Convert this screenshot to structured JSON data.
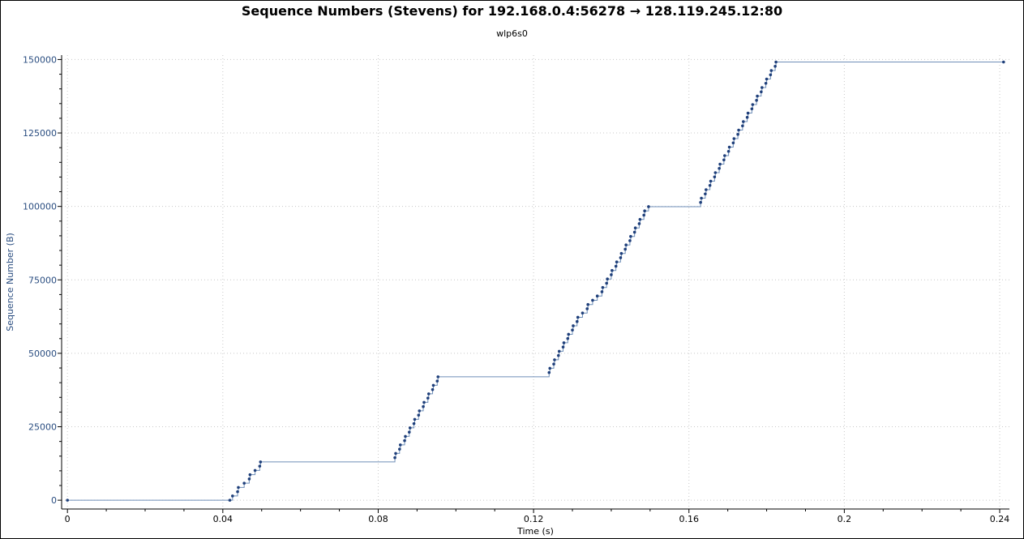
{
  "chart_data": {
    "type": "line",
    "title": "Sequence Numbers (Stevens) for 192.168.0.4:56278 → 128.119.245.12:80",
    "subtitle": "wlp6s0",
    "xlabel": "Time (s)",
    "ylabel": "Sequence Number (B)",
    "xlim": [
      -0.0015,
      0.2425
    ],
    "ylim": [
      -3000,
      151500
    ],
    "xticks": [
      "0",
      "0.04",
      "0.08",
      "0.12",
      "0.16",
      "0.2",
      "0.24"
    ],
    "yticks": [
      "0",
      "25000",
      "50000",
      "75000",
      "100000",
      "125000",
      "150000"
    ],
    "grid": true,
    "legend": "none",
    "colors": {
      "series": "#1f3f7a",
      "step_line": "#6f8fb8",
      "grid": "#c8c8c8",
      "axis_text": "#2a4d80"
    },
    "series": [
      {
        "values": [
          [
            0.0,
            0
          ],
          [
            0.0418,
            0
          ],
          [
            0.0425,
            1448
          ],
          [
            0.0438,
            2896
          ],
          [
            0.044,
            4344
          ],
          [
            0.0455,
            5792
          ],
          [
            0.0468,
            7240
          ],
          [
            0.047,
            8688
          ],
          [
            0.0483,
            10136
          ],
          [
            0.0495,
            11584
          ],
          [
            0.0497,
            13032
          ],
          [
            0.0843,
            14480
          ],
          [
            0.0845,
            15928
          ],
          [
            0.0855,
            17376
          ],
          [
            0.0857,
            18824
          ],
          [
            0.0868,
            20272
          ],
          [
            0.087,
            21720
          ],
          [
            0.088,
            23168
          ],
          [
            0.0882,
            24616
          ],
          [
            0.0892,
            26064
          ],
          [
            0.0894,
            27512
          ],
          [
            0.0904,
            28960
          ],
          [
            0.0906,
            30408
          ],
          [
            0.0916,
            31856
          ],
          [
            0.0918,
            33304
          ],
          [
            0.0928,
            34752
          ],
          [
            0.093,
            36200
          ],
          [
            0.094,
            37648
          ],
          [
            0.0942,
            39096
          ],
          [
            0.0952,
            40544
          ],
          [
            0.0954,
            41992
          ],
          [
            0.124,
            43440
          ],
          [
            0.1242,
            44888
          ],
          [
            0.1252,
            46336
          ],
          [
            0.1254,
            47784
          ],
          [
            0.1264,
            49232
          ],
          [
            0.1266,
            50680
          ],
          [
            0.1276,
            52128
          ],
          [
            0.1278,
            53576
          ],
          [
            0.1288,
            55024
          ],
          [
            0.129,
            56472
          ],
          [
            0.13,
            57920
          ],
          [
            0.1302,
            59368
          ],
          [
            0.1312,
            60816
          ],
          [
            0.1314,
            62264
          ],
          [
            0.1326,
            63712
          ],
          [
            0.1338,
            65160
          ],
          [
            0.134,
            66608
          ],
          [
            0.1352,
            68056
          ],
          [
            0.1364,
            69504
          ],
          [
            0.1376,
            70952
          ],
          [
            0.1378,
            72400
          ],
          [
            0.1388,
            73848
          ],
          [
            0.139,
            75296
          ],
          [
            0.14,
            76744
          ],
          [
            0.1402,
            78192
          ],
          [
            0.1412,
            79640
          ],
          [
            0.1414,
            81088
          ],
          [
            0.1424,
            82536
          ],
          [
            0.1426,
            83984
          ],
          [
            0.1436,
            85432
          ],
          [
            0.1438,
            86880
          ],
          [
            0.1448,
            88328
          ],
          [
            0.145,
            89776
          ],
          [
            0.146,
            91224
          ],
          [
            0.1462,
            92672
          ],
          [
            0.1472,
            94120
          ],
          [
            0.1474,
            95568
          ],
          [
            0.1484,
            97016
          ],
          [
            0.1486,
            98464
          ],
          [
            0.1496,
            99912
          ],
          [
            0.163,
            101360
          ],
          [
            0.1632,
            102808
          ],
          [
            0.1642,
            104256
          ],
          [
            0.1644,
            105704
          ],
          [
            0.1654,
            107152
          ],
          [
            0.1656,
            108600
          ],
          [
            0.1666,
            110048
          ],
          [
            0.1668,
            111496
          ],
          [
            0.1678,
            112944
          ],
          [
            0.168,
            114392
          ],
          [
            0.169,
            115840
          ],
          [
            0.1692,
            117288
          ],
          [
            0.1702,
            118736
          ],
          [
            0.1704,
            120184
          ],
          [
            0.1714,
            121632
          ],
          [
            0.1716,
            123080
          ],
          [
            0.1726,
            124528
          ],
          [
            0.1728,
            125976
          ],
          [
            0.1738,
            127424
          ],
          [
            0.174,
            128872
          ],
          [
            0.175,
            130320
          ],
          [
            0.1752,
            131768
          ],
          [
            0.1762,
            133216
          ],
          [
            0.1764,
            134664
          ],
          [
            0.1774,
            136112
          ],
          [
            0.1776,
            137560
          ],
          [
            0.1786,
            139008
          ],
          [
            0.1788,
            140456
          ],
          [
            0.1798,
            141904
          ],
          [
            0.18,
            143352
          ],
          [
            0.181,
            144800
          ],
          [
            0.1812,
            146248
          ],
          [
            0.1822,
            147696
          ],
          [
            0.1824,
            149144
          ],
          [
            0.241,
            149144
          ]
        ]
      }
    ]
  }
}
